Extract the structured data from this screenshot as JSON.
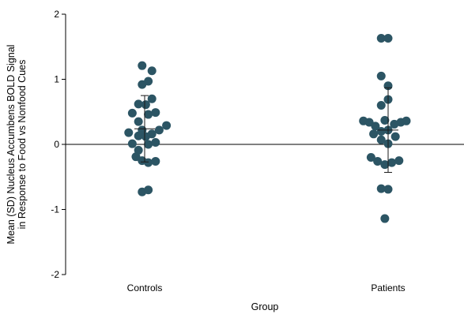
{
  "chart_data": {
    "type": "scatter",
    "title": "",
    "xlabel": "Group",
    "ylabel_lines": [
      "Mean (SD) Nucleus Accumbens BOLD Signal",
      "in Response to Food vs Nonfood Cues"
    ],
    "ylim": [
      -2,
      2
    ],
    "yticks": [
      2,
      1,
      0,
      -1,
      -2
    ],
    "ytick_labels": [
      "2",
      "1",
      "0",
      "-1",
      "-2"
    ],
    "categories": [
      "Controls",
      "Patients"
    ],
    "grid": false,
    "colors": {
      "point": "#2c5564",
      "axis": "#000000",
      "errorbar": "#1a1a1a"
    },
    "series": [
      {
        "category": "Controls",
        "mean": 0.24,
        "sd_low": -0.27,
        "sd_high": 0.75,
        "points": [
          {
            "jitter": -0.44,
            "y": 0.18
          },
          {
            "jitter": -0.34,
            "y": 0.48
          },
          {
            "jitter": -0.34,
            "y": 0.01
          },
          {
            "jitter": -0.24,
            "y": -0.19
          },
          {
            "jitter": -0.17,
            "y": 0.62
          },
          {
            "jitter": -0.17,
            "y": 0.35
          },
          {
            "jitter": -0.17,
            "y": 0.13
          },
          {
            "jitter": -0.17,
            "y": -0.09
          },
          {
            "jitter": -0.07,
            "y": 1.21
          },
          {
            "jitter": -0.07,
            "y": 0.92
          },
          {
            "jitter": -0.07,
            "y": 0.22
          },
          {
            "jitter": -0.07,
            "y": -0.25
          },
          {
            "jitter": -0.07,
            "y": -0.73
          },
          {
            "jitter": 0.03,
            "y": 0.61
          },
          {
            "jitter": 0.03,
            "y": 0.12
          },
          {
            "jitter": 0.1,
            "y": 0.97
          },
          {
            "jitter": 0.1,
            "y": 0.46
          },
          {
            "jitter": 0.1,
            "y": 0.0
          },
          {
            "jitter": 0.1,
            "y": -0.28
          },
          {
            "jitter": 0.1,
            "y": -0.7
          },
          {
            "jitter": 0.2,
            "y": 1.13
          },
          {
            "jitter": 0.2,
            "y": 0.7
          },
          {
            "jitter": 0.2,
            "y": 0.16
          },
          {
            "jitter": 0.3,
            "y": 0.49
          },
          {
            "jitter": 0.3,
            "y": 0.03
          },
          {
            "jitter": 0.3,
            "y": -0.26
          },
          {
            "jitter": 0.4,
            "y": 0.22
          },
          {
            "jitter": 0.6,
            "y": 0.29
          }
        ]
      },
      {
        "category": "Patients",
        "mean": 0.22,
        "sd_low": -0.43,
        "sd_high": 0.87,
        "points": [
          {
            "jitter": -0.68,
            "y": 0.36
          },
          {
            "jitter": -0.52,
            "y": 0.34
          },
          {
            "jitter": -0.47,
            "y": -0.2
          },
          {
            "jitter": -0.4,
            "y": 0.16
          },
          {
            "jitter": -0.35,
            "y": 0.28
          },
          {
            "jitter": -0.29,
            "y": -0.26
          },
          {
            "jitter": -0.19,
            "y": 1.63
          },
          {
            "jitter": -0.19,
            "y": 1.05
          },
          {
            "jitter": -0.19,
            "y": 0.6
          },
          {
            "jitter": -0.19,
            "y": 0.2
          },
          {
            "jitter": -0.19,
            "y": 0.07
          },
          {
            "jitter": -0.19,
            "y": -0.68
          },
          {
            "jitter": -0.09,
            "y": 0.37
          },
          {
            "jitter": -0.09,
            "y": -0.31
          },
          {
            "jitter": -0.09,
            "y": -1.14
          },
          {
            "jitter": 0.0,
            "y": 1.63
          },
          {
            "jitter": 0.0,
            "y": 0.9
          },
          {
            "jitter": 0.0,
            "y": 0.69
          },
          {
            "jitter": 0.0,
            "y": 0.22
          },
          {
            "jitter": 0.0,
            "y": 0.01
          },
          {
            "jitter": 0.0,
            "y": -0.69
          },
          {
            "jitter": 0.1,
            "y": -0.28
          },
          {
            "jitter": 0.17,
            "y": 0.31
          },
          {
            "jitter": 0.2,
            "y": 0.12
          },
          {
            "jitter": 0.3,
            "y": -0.25
          },
          {
            "jitter": 0.35,
            "y": 0.34
          },
          {
            "jitter": 0.5,
            "y": 0.36
          }
        ]
      }
    ]
  }
}
